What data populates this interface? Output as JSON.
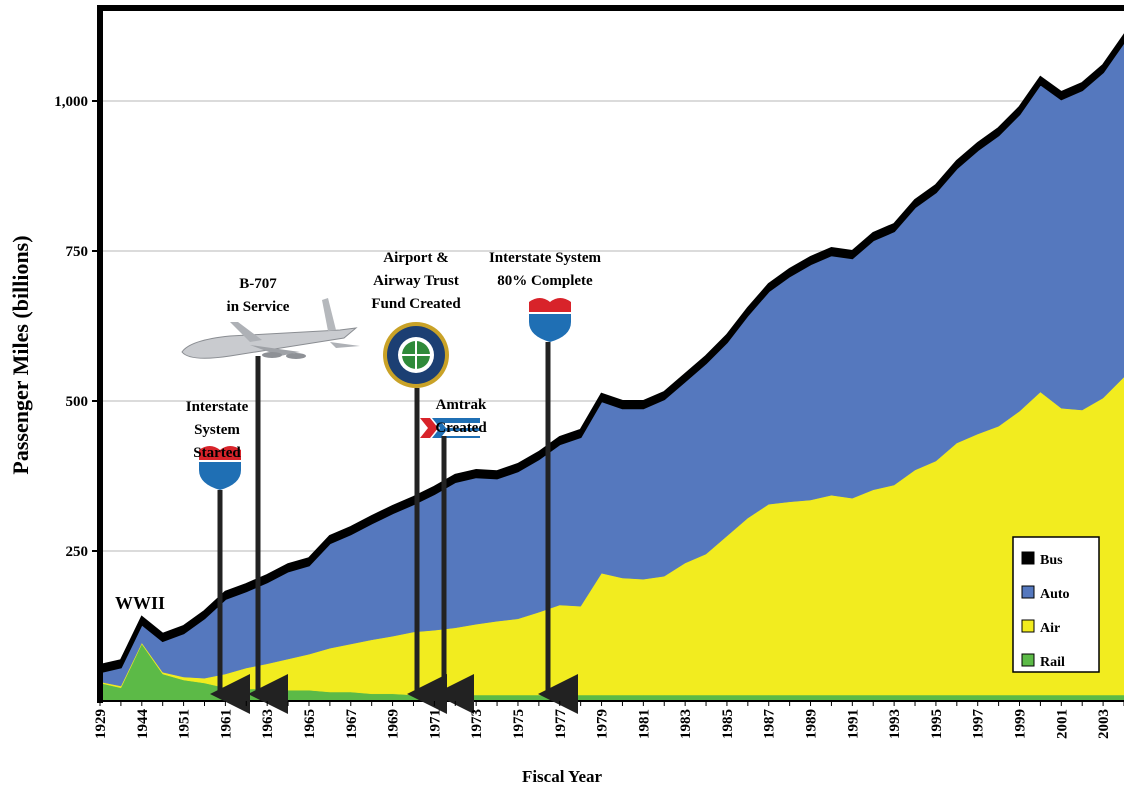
{
  "chart_data": {
    "type": "stacked_area",
    "y_label": "Passenger Miles (billions)",
    "x_label": "Fiscal Year",
    "categories": [
      "1929",
      null,
      "1944",
      null,
      "1951",
      null,
      "1961",
      null,
      "1963",
      null,
      "1965",
      null,
      "1967",
      null,
      "1969",
      null,
      "1971",
      null,
      "1973",
      null,
      "1975",
      null,
      "1977",
      null,
      "1979",
      null,
      "1981",
      null,
      "1983",
      null,
      "1985",
      null,
      "1987",
      null,
      "1989",
      null,
      "1991",
      null,
      "1993",
      null,
      "1995",
      null,
      "1997",
      null,
      "1999",
      null,
      "2001",
      null,
      "2003",
      null
    ],
    "series": [
      {
        "name": "Rail",
        "color": "#5cba47",
        "values": [
          30,
          22,
          95,
          45,
          35,
          30,
          22,
          20,
          20,
          18,
          18,
          15,
          15,
          12,
          12,
          10,
          10,
          10,
          10,
          10,
          10,
          10,
          10,
          10,
          10,
          10,
          10,
          10,
          10,
          10,
          10,
          10,
          10,
          10,
          10,
          10,
          10,
          10,
          10,
          10,
          10,
          10,
          10,
          10,
          10,
          10,
          10,
          10,
          10,
          10
        ]
      },
      {
        "name": "Air",
        "color": "#f2ec1f",
        "values": [
          2,
          3,
          2,
          3,
          5,
          8,
          23,
          35,
          42,
          52,
          60,
          73,
          80,
          90,
          96,
          105,
          108,
          112,
          118,
          123,
          127,
          138,
          150,
          148,
          203,
          195,
          193,
          198,
          220,
          235,
          265,
          295,
          318,
          322,
          325,
          333,
          328,
          342,
          350,
          375,
          390,
          420,
          435,
          448,
          473,
          505,
          478,
          475,
          495,
          530
        ]
      },
      {
        "name": "Auto",
        "color": "#5578be",
        "values": [
          16,
          31,
          31,
          52,
          73,
          100,
          125,
          128,
          136,
          146,
          148,
          175,
          183,
          194,
          205,
          213,
          227,
          243,
          245,
          238,
          246,
          255,
          268,
          282,
          287,
          283,
          285,
          295,
          303,
          318,
          323,
          338,
          355,
          376,
          393,
          400,
          400,
          416,
          423,
          438,
          448,
          458,
          473,
          485,
          495,
          513,
          515,
          533,
          543,
          558
        ]
      },
      {
        "name": "Bus",
        "color": "#000000",
        "values": [
          12,
          12,
          12,
          12,
          12,
          12,
          12,
          12,
          12,
          12,
          12,
          12,
          12,
          12,
          12,
          12,
          12,
          12,
          12,
          12,
          12,
          12,
          12,
          12,
          12,
          12,
          12,
          12,
          12,
          12,
          12,
          12,
          12,
          12,
          12,
          12,
          12,
          12,
          12,
          12,
          12,
          12,
          12,
          12,
          12,
          12,
          12,
          12,
          12,
          12
        ]
      }
    ],
    "ylim": [
      0,
      1150
    ],
    "yticks": [
      250,
      500,
      750,
      {
        "value": 1000,
        "label": "1,000"
      }
    ],
    "grid": true,
    "legend": "lower right",
    "annotations": [
      {
        "lines": [
          "WWII"
        ]
      },
      {
        "lines": [
          "Interstate",
          "System",
          "Started"
        ]
      },
      {
        "lines": [
          "B-707",
          "in Service"
        ]
      },
      {
        "lines": [
          "Airport &",
          "Airway Trust",
          "Fund Created"
        ]
      },
      {
        "lines": [
          "Amtrak",
          "Created"
        ]
      },
      {
        "lines": [
          "Interstate System",
          "80% Complete"
        ]
      }
    ]
  }
}
